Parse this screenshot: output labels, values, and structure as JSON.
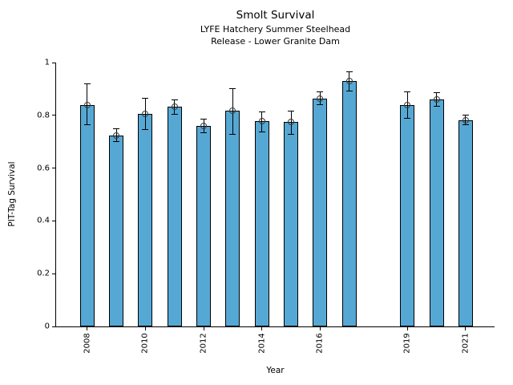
{
  "chart_data": {
    "type": "bar",
    "title": "Smolt Survival",
    "subtitle_line1": "LYFE Hatchery Summer Steelhead",
    "subtitle_line2": "Release - Lower Granite Dam",
    "xlabel": "Year",
    "ylabel": "PIT-Tag Survival",
    "ylim": [
      0,
      1
    ],
    "yticks": [
      0,
      0.2,
      0.4,
      0.6,
      0.8,
      1
    ],
    "yticklabels": [
      "0",
      "0.2",
      "0.4",
      "0.6",
      "0.8",
      "1"
    ],
    "xticklabels": [
      "2008",
      "2010",
      "2012",
      "2014",
      "2016",
      "2019",
      "2021"
    ],
    "categories": [
      "2008",
      "2009",
      "2010",
      "2011",
      "2012",
      "2013",
      "2014",
      "2015",
      "2016",
      "2017",
      "2019",
      "2020",
      "2021"
    ],
    "values": [
      0.84,
      0.723,
      0.806,
      0.833,
      0.761,
      0.817,
      0.777,
      0.774,
      0.864,
      0.93,
      0.84,
      0.86,
      0.782
    ],
    "error_low": [
      0.765,
      0.7,
      0.747,
      0.805,
      0.733,
      0.728,
      0.737,
      0.729,
      0.84,
      0.893,
      0.79,
      0.833,
      0.765
    ],
    "error_high": [
      0.92,
      0.748,
      0.864,
      0.86,
      0.785,
      0.901,
      0.812,
      0.817,
      0.888,
      0.965,
      0.888,
      0.885,
      0.8
    ],
    "missing_years": [
      "2018"
    ],
    "grid": false,
    "legend": "none",
    "bar_color": "#56a8d4",
    "bar_edge_color": "#000000",
    "errorbar_color": "#000000",
    "marker": "open-circle"
  }
}
